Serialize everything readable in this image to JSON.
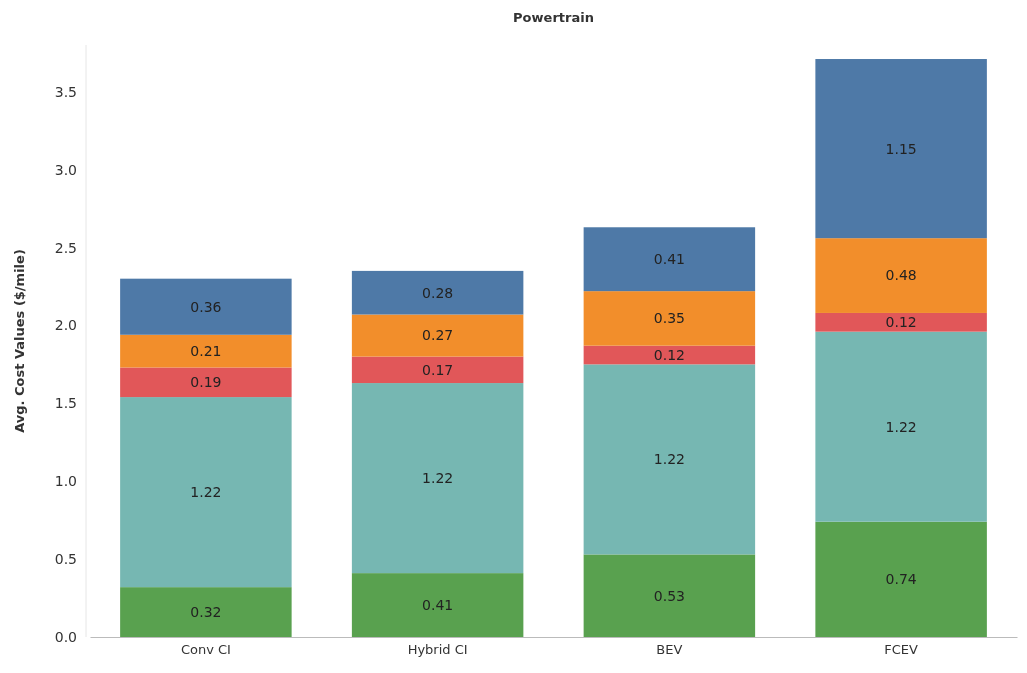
{
  "chart_data": {
    "type": "bar",
    "title": "Powertrain",
    "ylabel": "Avg. Cost Values ($/mile)",
    "categories": [
      "Conv CI",
      "Hybrid CI",
      "BEV",
      "FCEV"
    ],
    "stacked": true,
    "data_labels": true,
    "grid": false,
    "ylim": [
      0,
      3.8
    ],
    "yticks": [
      {
        "value": 0,
        "label": "0.0"
      },
      {
        "value": 0.5,
        "label": "0.5"
      },
      {
        "value": 1,
        "label": "1.0"
      },
      {
        "value": 1.5,
        "label": "1.5"
      },
      {
        "value": 2,
        "label": "2.0"
      },
      {
        "value": 2.5,
        "label": "2.5"
      },
      {
        "value": 3,
        "label": "3.0"
      },
      {
        "value": 3.5,
        "label": "3.5"
      }
    ],
    "series": [
      {
        "color": "#59a14f",
        "values": [
          0.32,
          0.41,
          0.53,
          0.74
        ]
      },
      {
        "color": "#76b7b2",
        "values": [
          1.22,
          1.22,
          1.22,
          1.22
        ]
      },
      {
        "color": "#e15759",
        "values": [
          0.19,
          0.17,
          0.12,
          0.12
        ]
      },
      {
        "color": "#f28e2b",
        "values": [
          0.21,
          0.27,
          0.35,
          0.48
        ]
      },
      {
        "color": "#4e79a7",
        "values": [
          0.36,
          0.28,
          0.41,
          1.15
        ]
      }
    ]
  }
}
